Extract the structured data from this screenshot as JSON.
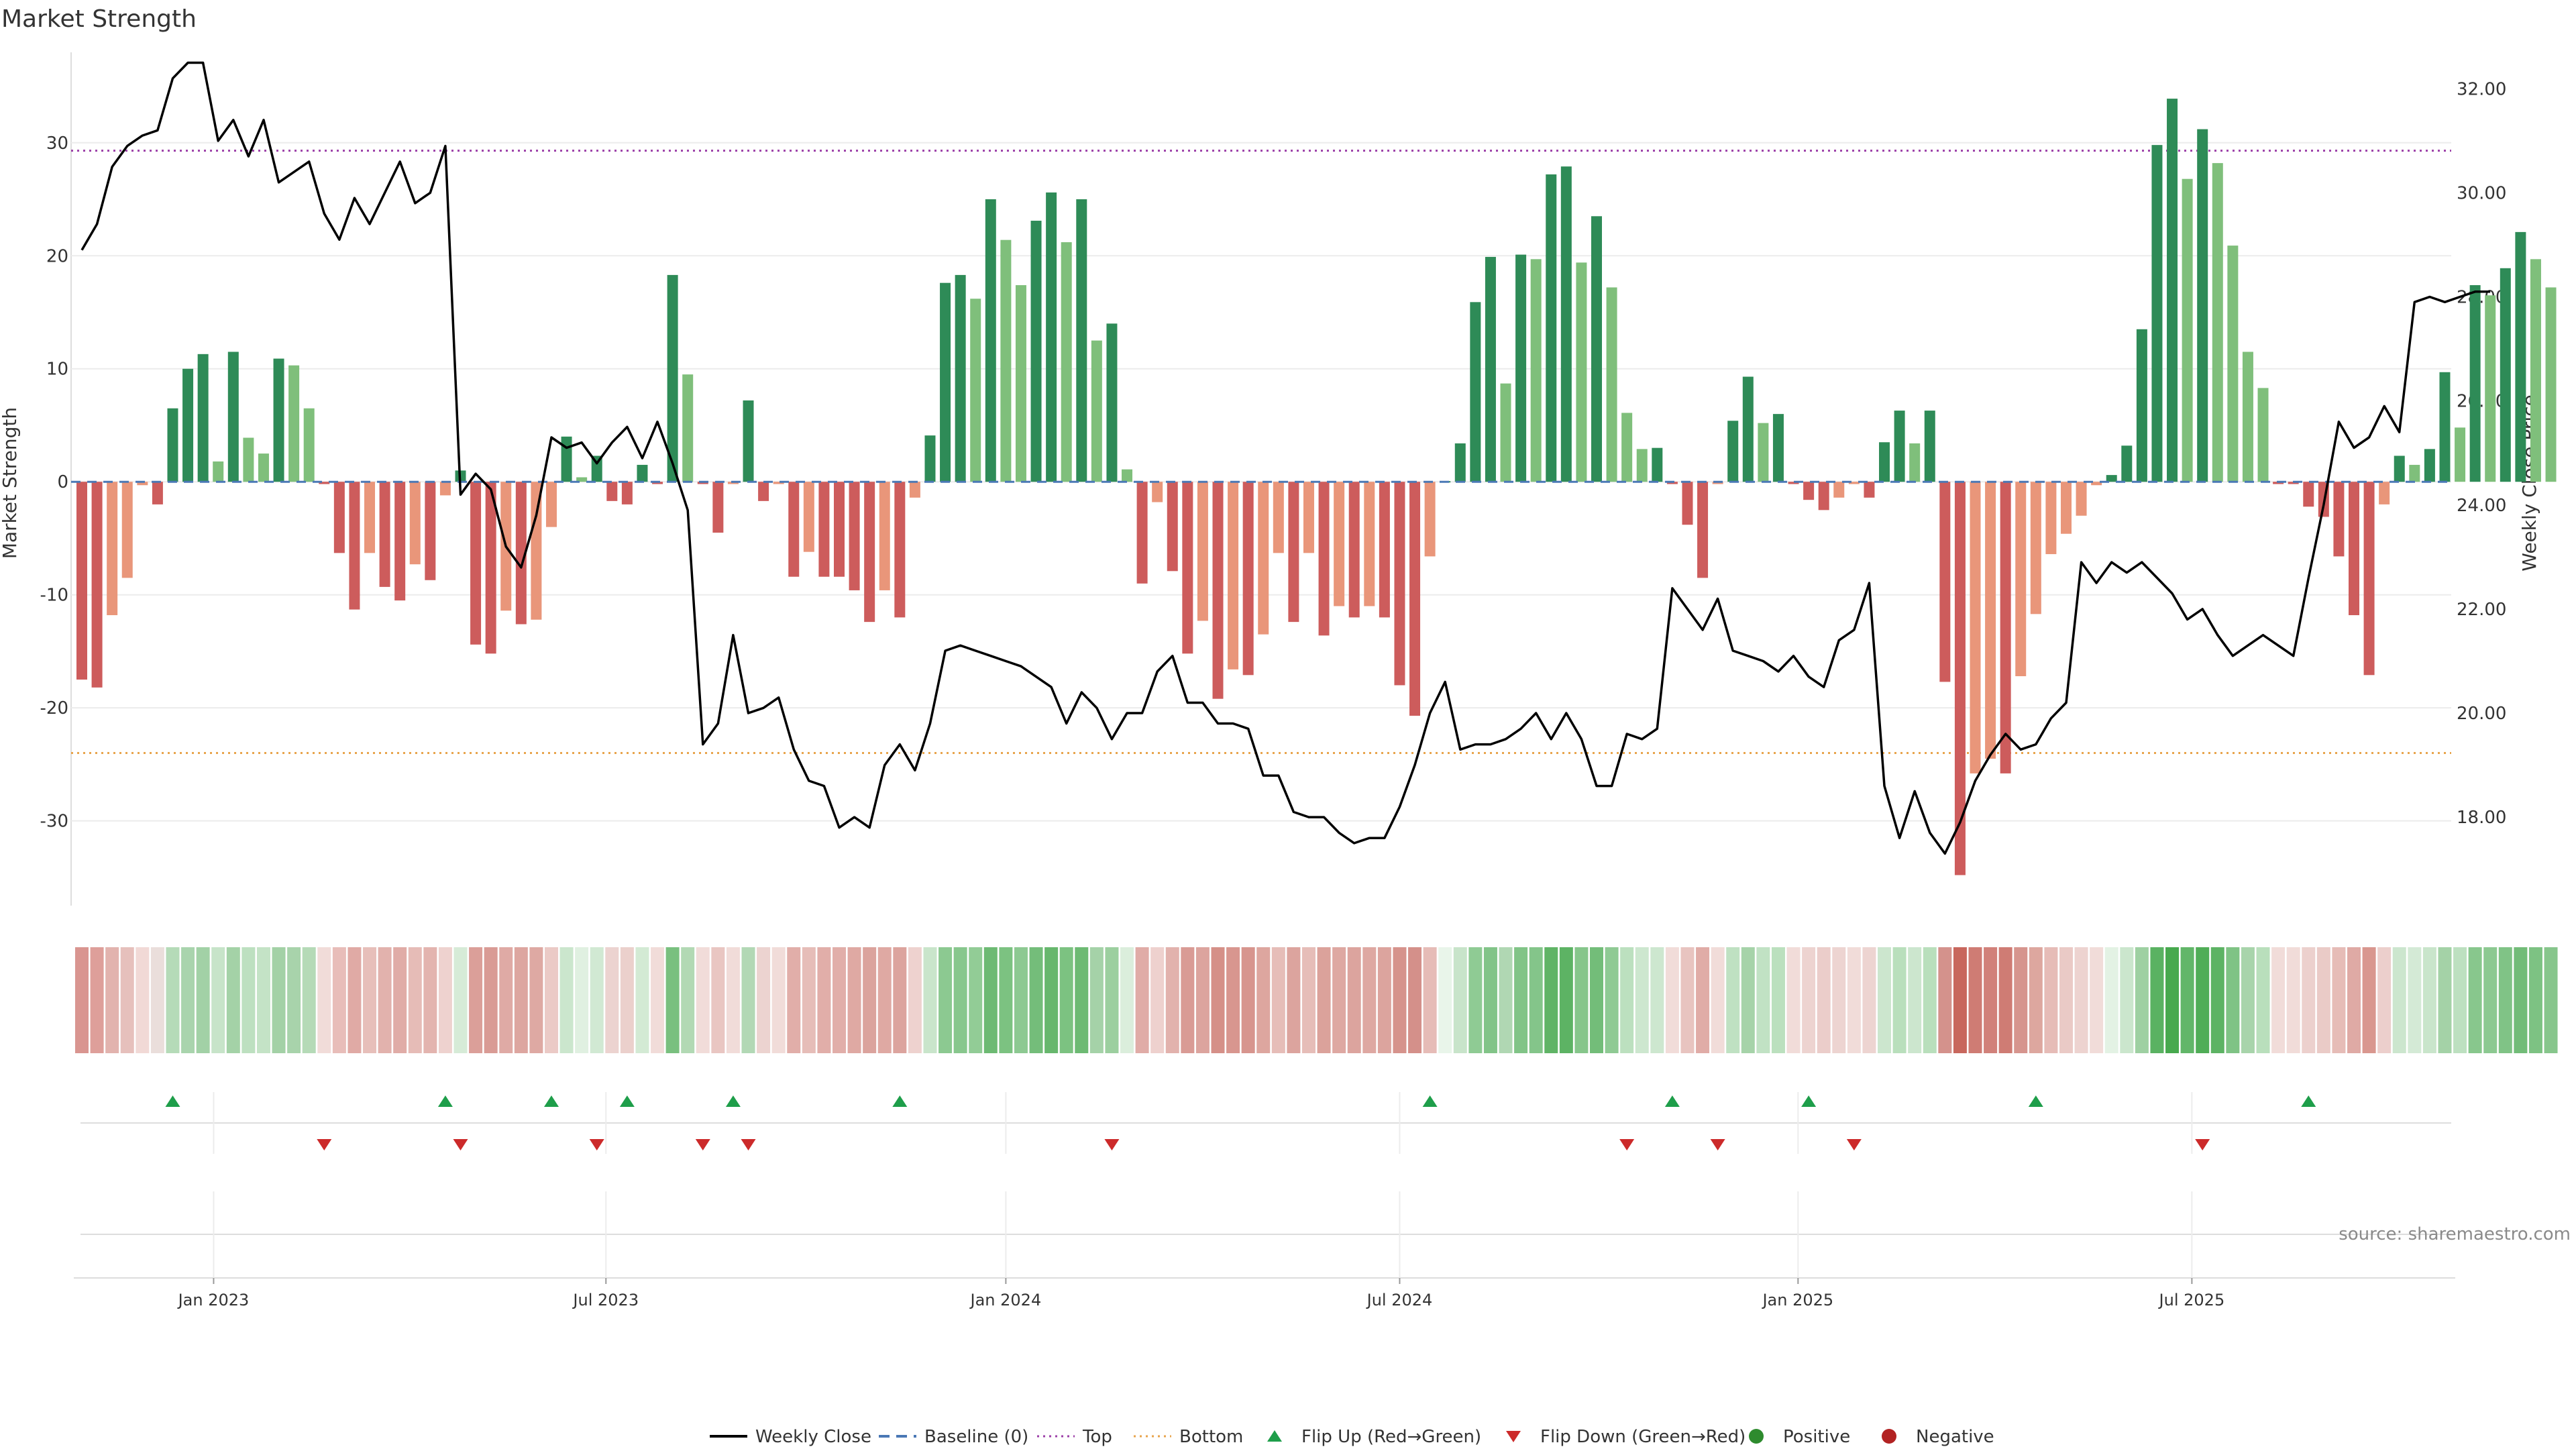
{
  "chart_data": {
    "type": "bar",
    "title": "Market Strength",
    "ylabel": "Market Strength",
    "y2label": "Weekly Close Price",
    "source": "source: sharemaestro.com",
    "ylim": [
      -37.5,
      38
    ],
    "y2lim": [
      16.3,
      32.7
    ],
    "yticks": [
      "30",
      "20",
      "10",
      "0",
      "-10",
      "-20",
      "-30"
    ],
    "y2ticks": [
      "32.00",
      "30.00",
      "28.00",
      "26.00",
      "24.00",
      "22.00",
      "20.00",
      "18.00"
    ],
    "xticks": [
      "Jan 2023",
      "Jul 2023",
      "Jan 2024",
      "Jul 2024",
      "Jan 2025",
      "Jul 2025"
    ],
    "xtick_week_index": [
      8.7,
      34.6,
      61.0,
      87.0,
      113.3,
      139.3
    ],
    "top_level": 29.3,
    "bottom_level": -24.0,
    "strength": [
      -17.5,
      -18.2,
      -11.8,
      -8.5,
      -0.3,
      -2.0,
      6.5,
      10.0,
      11.3,
      1.8,
      11.5,
      3.9,
      2.5,
      10.9,
      10.3,
      6.5,
      -0.2,
      -6.3,
      -11.3,
      -6.3,
      -9.3,
      -10.5,
      -7.3,
      -8.7,
      -1.2,
      1.0,
      -14.4,
      -15.2,
      -11.4,
      -12.6,
      -12.2,
      -4.0,
      4.0,
      0.4,
      2.3,
      -1.7,
      -2.0,
      1.5,
      -0.2,
      18.3,
      9.5,
      -0.2,
      -4.5,
      -0.2,
      7.2,
      -1.7,
      -0.2,
      -8.4,
      -6.2,
      -8.4,
      -8.4,
      -9.6,
      -12.4,
      -9.6,
      -12.0,
      -1.4,
      4.1,
      17.6,
      18.3,
      16.2,
      25.0,
      21.4,
      17.4,
      23.1,
      25.6,
      21.2,
      25.0,
      12.5,
      14.0,
      1.1,
      -9.0,
      -1.8,
      -7.9,
      -15.2,
      -12.3,
      -19.2,
      -16.6,
      -17.1,
      -13.5,
      -6.3,
      -12.4,
      -6.3,
      -13.6,
      -11.0,
      -12.0,
      -11.0,
      -12.0,
      -18.0,
      -20.7,
      -6.6,
      0.1,
      3.4,
      15.9,
      19.9,
      8.7,
      20.1,
      19.7,
      27.2,
      27.9,
      19.4,
      23.5,
      17.2,
      6.1,
      2.9,
      3.0,
      -0.2,
      -3.8,
      -8.5,
      -0.2,
      5.4,
      9.3,
      5.2,
      6.0,
      -0.2,
      -1.6,
      -2.5,
      -1.4,
      -0.2,
      -1.4,
      3.5,
      6.3,
      3.4,
      6.3,
      -17.7,
      -34.8,
      -25.8,
      -24.5,
      -25.8,
      -17.2,
      -11.7,
      -6.4,
      -4.6,
      -3.0,
      -0.3,
      0.6,
      3.2,
      13.5,
      29.8,
      33.9,
      26.8,
      31.2,
      28.2,
      20.9,
      11.5,
      8.3,
      -0.2,
      -0.2,
      -2.2,
      -3.1,
      -6.6,
      -11.8,
      -17.1,
      -2.0,
      2.3,
      1.5,
      2.9,
      9.7,
      4.8,
      17.4,
      16.5,
      18.9,
      22.1,
      19.7,
      17.2
    ],
    "close": [
      28.9,
      29.4,
      30.5,
      30.9,
      31.1,
      31.2,
      32.2,
      32.5,
      32.5,
      31.0,
      31.4,
      30.7,
      31.4,
      30.2,
      30.4,
      30.6,
      29.6,
      29.1,
      29.9,
      29.4,
      30.0,
      30.6,
      29.8,
      30.0,
      30.9,
      24.2,
      24.6,
      24.3,
      23.2,
      22.8,
      23.8,
      25.3,
      25.1,
      25.2,
      24.8,
      25.2,
      25.5,
      24.9,
      25.6,
      24.8,
      23.9,
      19.4,
      19.8,
      21.5,
      20.0,
      20.1,
      20.3,
      19.3,
      18.7,
      18.6,
      17.8,
      18.0,
      17.8,
      19.0,
      19.4,
      18.9,
      19.8,
      21.2,
      21.3,
      21.2,
      21.1,
      21.0,
      20.9,
      20.7,
      20.5,
      19.8,
      20.4,
      20.1,
      19.5,
      20.0,
      20.0,
      20.8,
      21.1,
      20.2,
      20.2,
      19.8,
      19.8,
      19.7,
      18.8,
      18.8,
      18.1,
      18.0,
      18.0,
      17.7,
      17.5,
      17.6,
      17.6,
      18.2,
      19.0,
      20.0,
      20.6,
      19.3,
      19.4,
      19.4,
      19.5,
      19.7,
      20.0,
      19.5,
      20.0,
      19.5,
      18.6,
      18.6,
      19.6,
      19.5,
      19.7,
      22.4,
      22.0,
      21.6,
      22.2,
      21.2,
      21.1,
      21.0,
      20.8,
      21.1,
      20.7,
      20.5,
      21.4,
      21.6,
      22.5,
      18.6,
      17.6,
      18.5,
      17.7,
      17.3,
      17.9,
      18.7,
      19.2,
      19.6,
      19.3,
      19.4,
      19.9,
      20.2,
      22.9,
      22.5,
      22.9,
      22.7,
      22.9,
      22.6,
      22.3,
      21.8,
      22.0,
      21.5,
      21.1,
      21.3,
      21.5,
      21.3,
      21.1,
      22.6,
      24.0,
      25.6,
      25.1,
      25.3,
      25.9,
      25.4,
      27.9,
      28.0,
      27.9,
      28.0,
      28.1,
      28.1
    ],
    "strip_colors": [
      "#d99590",
      "#de9f9a",
      "#e2b3ae",
      "#e6c0bc",
      "#f1d9d6",
      "#eadedb",
      "#b5dbb8",
      "#a9d4ad",
      "#a2d1a6",
      "#c7e4c9",
      "#a4d2a7",
      "#bde0c0",
      "#c4e3c6",
      "#a3d1a6",
      "#a8d3ab",
      "#b5dab7",
      "#f1dcd9",
      "#e8bdb9",
      "#e0aaa5",
      "#e7bfba",
      "#e2b2ad",
      "#e0aca7",
      "#e6bcb7",
      "#e3b4af",
      "#eed2cf",
      "#d6ebd7",
      "#db9f99",
      "#d99b95",
      "#dfaaa5",
      "#ddA6A0",
      "#dea9a3",
      "#ebcac6",
      "#cbe6cd",
      "#e0f0e1",
      "#d1e9d3",
      "#ecd3d0",
      "#ebd0cc",
      "#d3eAd4",
      "#f1dcd9",
      "#79c07f",
      "#b2d9b4",
      "#f1dcd9",
      "#e9c6c2",
      "#f1dcd9",
      "#b2d8b5",
      "#ecd3d0",
      "#f1dcd9",
      "#e1aea9",
      "#e6bdb8",
      "#e1aea9",
      "#e1aea9",
      "#dfa9a3",
      "#dba39d",
      "#dfa9a3",
      "#dca49e",
      "#eed2cf",
      "#c9e5cb",
      "#8cc991",
      "#88c78d",
      "#92cc96",
      "#6dba73",
      "#7cc281",
      "#8dc992",
      "#74bd7a",
      "#67b76d",
      "#7cc281",
      "#6dba73",
      "#a5d2a8",
      "#9ccf9f",
      "#dbeedc",
      "#e0aca7",
      "#eed1ce",
      "#e2b2ad",
      "#d99b95",
      "#dca49e",
      "#d59088",
      "#d8968f",
      "#d7958e",
      "#dda69f",
      "#e6bdb8",
      "#dca49e",
      "#e6bdb8",
      "#dba29b",
      "#dea8a2",
      "#dca49e",
      "#dea8a2",
      "#dca49e",
      "#d6938c",
      "#d4908a",
      "#e6bcb7",
      "#e9f5ea",
      "#c8e4ca",
      "#8fcb94",
      "#82c488",
      "#b0d7b3",
      "#81c487",
      "#84c58a",
      "#60b466",
      "#5db364",
      "#86c68b",
      "#73bd79",
      "#8fca94",
      "#bce0bf",
      "#cde7cf",
      "#cde7cf",
      "#f1dcd9",
      "#e8c4c0",
      "#e0aca7",
      "#f1dcd9",
      "#bfe1c2",
      "#a6d3a9",
      "#c1e2c4",
      "#bbe0be",
      "#f1dcd9",
      "#edd3d0",
      "#ebcdca",
      "#edd4d1",
      "#f1dcd9",
      "#edd4d1",
      "#cce6ce",
      "#b9dfbc",
      "#cce6ce",
      "#b9dfbc",
      "#d4928c",
      "#c8675d",
      "#cf7c74",
      "#d1817a",
      "#cf7c74",
      "#d6958e",
      "#dda79f",
      "#e6bcb7",
      "#eacac6",
      "#edd3d0",
      "#f1dcd9",
      "#e3f2e4",
      "#cbe6cd",
      "#9ed0a2",
      "#5ab262",
      "#47a94e",
      "#62b669",
      "#50ad57",
      "#5db364",
      "#7fc385",
      "#a8d4ab",
      "#b9dfbc",
      "#f1dcd9",
      "#f1dcd9",
      "#ecd0cd",
      "#eacbc7",
      "#e6bcb7",
      "#dfaaa5",
      "#d9978f",
      "#eccfcc",
      "#cce6ce",
      "#d4ead6",
      "#c9e5cb",
      "#a4d2a7",
      "#bde0c0",
      "#88c78d",
      "#8cc991",
      "#80c386",
      "#72bc78",
      "#7dc283",
      "#87c68c"
    ],
    "flip_up_idx": [
      6,
      24,
      31,
      36,
      43,
      54,
      89,
      105,
      114,
      129,
      147
    ],
    "flip_down_idx": [
      16,
      25,
      34,
      41,
      44,
      68,
      102,
      108,
      117,
      140
    ],
    "colors": {
      "pos_dark": "#2e8b57",
      "pos_light": "#7fbf7b",
      "neg_dark": "#cd5c5c",
      "neg_light": "#e9967a",
      "close_line": "#000000",
      "baseline": "#4a78b5",
      "top_line": "#9c3fa8",
      "bottom_line": "#e8a44c",
      "flip_up": "#1e9e4a",
      "flip_down": "#cc2a2a",
      "legend_positive": "#2e8b2e",
      "legend_negative": "#b22222"
    },
    "legend": [
      {
        "label": "Weekly Close",
        "kind": "line"
      },
      {
        "label": "Baseline (0)",
        "kind": "dash"
      },
      {
        "label": "Top",
        "kind": "dot-top"
      },
      {
        "label": "Bottom",
        "kind": "dot-bottom"
      },
      {
        "label": "Flip Up (Red→Green)",
        "kind": "tri-up"
      },
      {
        "label": "Flip Down (Green→Red)",
        "kind": "tri-down"
      },
      {
        "label": "Positive",
        "kind": "circle-pos"
      },
      {
        "label": "Negative",
        "kind": "circle-neg"
      }
    ]
  }
}
